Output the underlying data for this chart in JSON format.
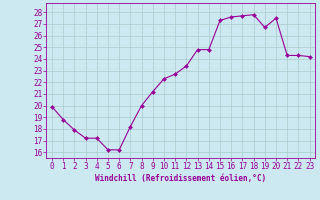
{
  "x": [
    0,
    1,
    2,
    3,
    4,
    5,
    6,
    7,
    8,
    9,
    10,
    11,
    12,
    13,
    14,
    15,
    16,
    17,
    18,
    19,
    20,
    21,
    22,
    23
  ],
  "y": [
    19.9,
    18.8,
    17.9,
    17.2,
    17.2,
    16.2,
    16.2,
    18.2,
    20.0,
    21.2,
    22.3,
    22.7,
    23.4,
    24.8,
    24.8,
    27.3,
    27.6,
    27.7,
    27.8,
    26.7,
    27.5,
    24.3,
    24.3,
    24.2
  ],
  "line_color": "#990099",
  "marker_color": "#990099",
  "bg_color": "#cce8f0",
  "grid_color": "#aacccc",
  "ylabel_values": [
    16,
    17,
    18,
    19,
    20,
    21,
    22,
    23,
    24,
    25,
    26,
    27,
    28
  ],
  "xlabel_label": "Windchill (Refroidissement éolien,°C)",
  "ylim": [
    15.5,
    28.8
  ],
  "xlim": [
    -0.5,
    23.5
  ],
  "tick_fontsize": 5.5,
  "xlabel_fontsize": 5.5
}
